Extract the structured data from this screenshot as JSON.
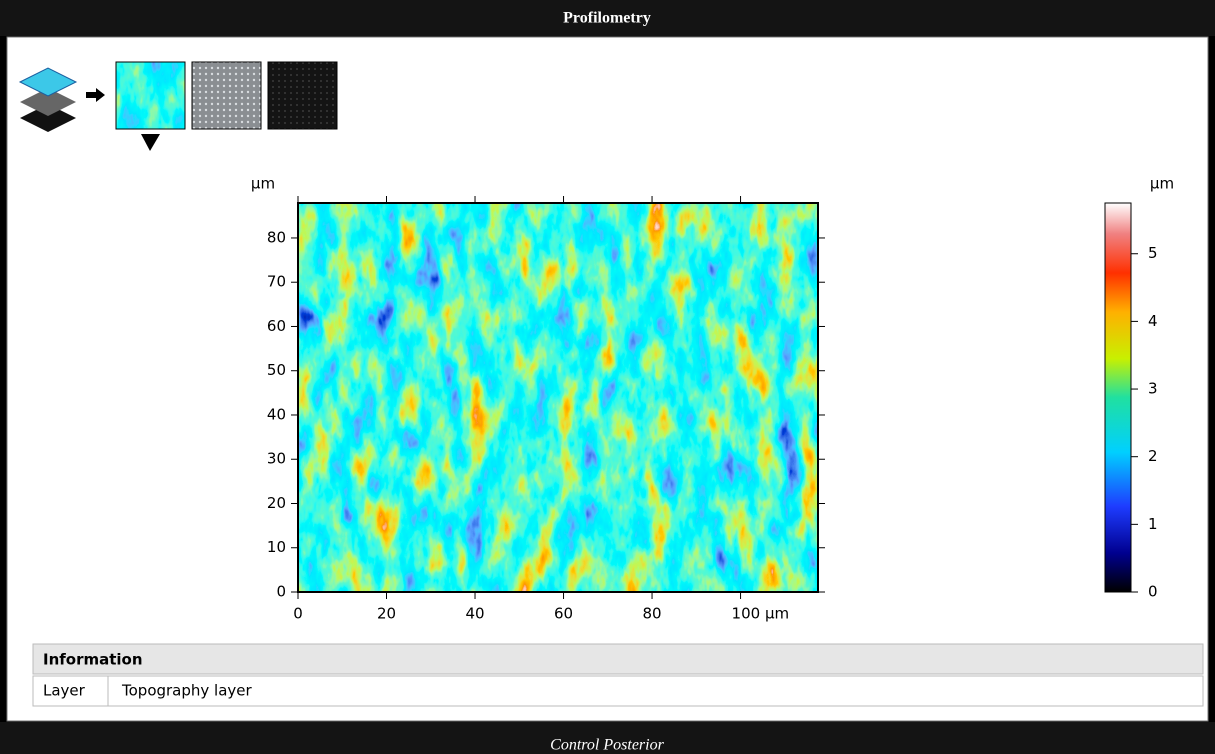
{
  "header": {
    "title": "Profilometry"
  },
  "plot": {
    "y_unit": "µm",
    "xlim": [
      0,
      117.5
    ],
    "ylim": [
      0,
      87.9
    ],
    "xticks": [
      0,
      20,
      40,
      60,
      80,
      {
        "value": 100,
        "label": "100 µm"
      }
    ],
    "yticks": [
      0,
      10,
      20,
      30,
      40,
      50,
      60,
      70,
      80
    ]
  },
  "colorbar": {
    "unit": "µm",
    "lim": [
      0,
      5.75
    ],
    "ticks": [
      0,
      1,
      2,
      3,
      4,
      5
    ]
  },
  "information": {
    "title": "Information",
    "rows": [
      [
        "Layer",
        "Topography layer"
      ]
    ]
  },
  "footer": {
    "caption": "Control Posterior"
  }
}
